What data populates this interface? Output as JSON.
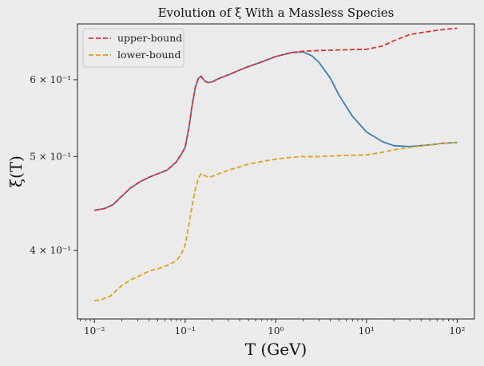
{
  "chart_data": {
    "type": "line",
    "title": "Evolution of ξ With a Massless Species",
    "xlabel": "T (GeV)",
    "ylabel": "ξ(T)",
    "x_scale": "log",
    "y_scale": "log",
    "xlim": [
      0.0065,
      155
    ],
    "ylim": [
      0.34,
      0.685
    ],
    "x_ticks": [
      {
        "value": 0.01,
        "label": "10⁻²"
      },
      {
        "value": 0.1,
        "label": "10⁻¹"
      },
      {
        "value": 1,
        "label": "10⁰"
      },
      {
        "value": 10,
        "label": "10¹"
      },
      {
        "value": 100,
        "label": "10²"
      }
    ],
    "y_ticks": [
      {
        "value": 0.4,
        "label": "4 × 10⁻¹"
      },
      {
        "value": 0.5,
        "label": "5 × 10⁻¹"
      },
      {
        "value": 0.6,
        "label": "6 × 10⁻¹"
      }
    ],
    "legend": {
      "position": "top-left"
    },
    "series": [
      {
        "name": "",
        "color": "#3d7fb5",
        "style": "solid",
        "x": [
          0.01,
          0.013,
          0.016,
          0.02,
          0.025,
          0.032,
          0.04,
          0.05,
          0.063,
          0.079,
          0.09,
          0.1,
          0.11,
          0.12,
          0.13,
          0.14,
          0.15,
          0.16,
          0.17,
          0.18,
          0.2,
          0.22,
          0.25,
          0.3,
          0.4,
          0.5,
          0.7,
          1.0,
          1.5,
          2.0,
          2.5,
          3.0,
          4.0,
          5.0,
          7.0,
          10,
          15,
          20,
          30,
          50,
          70,
          100
        ],
        "y": [
          0.44,
          0.442,
          0.446,
          0.455,
          0.464,
          0.471,
          0.476,
          0.48,
          0.484,
          0.493,
          0.502,
          0.511,
          0.535,
          0.566,
          0.59,
          0.602,
          0.605,
          0.6,
          0.597,
          0.596,
          0.597,
          0.6,
          0.603,
          0.607,
          0.614,
          0.619,
          0.626,
          0.634,
          0.64,
          0.641,
          0.635,
          0.625,
          0.602,
          0.578,
          0.55,
          0.53,
          0.518,
          0.513,
          0.512,
          0.514,
          0.516,
          0.517
        ]
      },
      {
        "name": "upper-bound",
        "color": "#e03030",
        "style": "dashed",
        "x": [
          0.01,
          0.013,
          0.016,
          0.02,
          0.025,
          0.032,
          0.04,
          0.05,
          0.063,
          0.079,
          0.09,
          0.1,
          0.11,
          0.12,
          0.13,
          0.14,
          0.15,
          0.16,
          0.17,
          0.18,
          0.2,
          0.22,
          0.25,
          0.3,
          0.4,
          0.5,
          0.7,
          1.0,
          1.5,
          2.0,
          3.0,
          5.0,
          10,
          15,
          20,
          30,
          50,
          70,
          100
        ],
        "y": [
          0.44,
          0.442,
          0.446,
          0.455,
          0.464,
          0.471,
          0.476,
          0.48,
          0.484,
          0.493,
          0.502,
          0.511,
          0.535,
          0.566,
          0.59,
          0.602,
          0.605,
          0.6,
          0.597,
          0.596,
          0.597,
          0.6,
          0.603,
          0.607,
          0.614,
          0.619,
          0.626,
          0.634,
          0.64,
          0.642,
          0.643,
          0.644,
          0.645,
          0.65,
          0.658,
          0.668,
          0.673,
          0.676,
          0.678
        ]
      },
      {
        "name": "lower-bound",
        "color": "#e0a020",
        "style": "dashed",
        "x": [
          0.01,
          0.012,
          0.015,
          0.02,
          0.025,
          0.032,
          0.04,
          0.05,
          0.063,
          0.079,
          0.09,
          0.1,
          0.11,
          0.12,
          0.13,
          0.14,
          0.15,
          0.16,
          0.17,
          0.18,
          0.2,
          0.22,
          0.25,
          0.3,
          0.4,
          0.5,
          0.7,
          1.0,
          1.5,
          2.0,
          3.0,
          5.0,
          10,
          15,
          20,
          30,
          50,
          70,
          100
        ],
        "y": [
          0.355,
          0.356,
          0.359,
          0.368,
          0.373,
          0.377,
          0.381,
          0.383,
          0.386,
          0.39,
          0.396,
          0.405,
          0.425,
          0.446,
          0.463,
          0.475,
          0.48,
          0.479,
          0.477,
          0.476,
          0.477,
          0.479,
          0.481,
          0.484,
          0.488,
          0.491,
          0.494,
          0.497,
          0.499,
          0.5,
          0.5,
          0.501,
          0.502,
          0.505,
          0.508,
          0.511,
          0.514,
          0.516,
          0.517
        ]
      }
    ]
  }
}
